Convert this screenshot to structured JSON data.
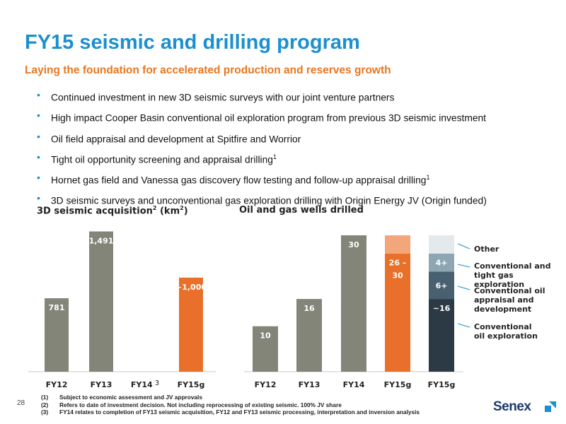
{
  "title": "FY15 seismic and drilling program",
  "subtitle": "Laying the foundation for accelerated production and reserves growth",
  "bullets": [
    {
      "text": "Continued investment in new 3D seismic surveys with our joint venture partners",
      "sup": ""
    },
    {
      "text": "High impact Cooper Basin conventional oil exploration program from previous 3D seismic investment",
      "sup": ""
    },
    {
      "text": "Oil field appraisal and development at Spitfire and Worrior",
      "sup": ""
    },
    {
      "text": "Tight oil opportunity screening and appraisal drilling",
      "sup": "1"
    },
    {
      "text": "Hornet gas field and Vanessa gas discovery flow testing and follow-up appraisal drilling",
      "sup": "1"
    },
    {
      "text": "3D seismic surveys and unconventional gas exploration drilling with Origin Energy JV (Origin funded)",
      "sup": ""
    }
  ],
  "chart_data": [
    {
      "type": "bar",
      "title": "3D seismic acquisition",
      "title_sup": "2",
      "title_unit": " (km",
      "title_unit_sup": "2",
      "title_end": ")",
      "categories": [
        "FY12",
        "FY13",
        "FY14",
        "FY15g"
      ],
      "category_sups": [
        "",
        "",
        "3",
        ""
      ],
      "values": [
        781,
        1491,
        0,
        1000
      ],
      "data_labels": [
        "781",
        "1,491",
        "",
        "~1,000"
      ],
      "colors": [
        "#838579",
        "#838579",
        "#838579",
        "#e8702a"
      ],
      "ylim": [
        0,
        1600
      ]
    },
    {
      "type": "bar",
      "title": "Oil and gas wells drilled",
      "categories": [
        "FY12",
        "FY13",
        "FY14",
        "FY15g",
        "FY15g"
      ],
      "values": [
        10,
        16,
        30,
        30,
        null
      ],
      "data_labels": [
        "10",
        "16",
        "30",
        "26 –\n30",
        ""
      ],
      "colors": [
        "#838579",
        "#838579",
        "#838579",
        "#e8702a",
        ""
      ],
      "range_top_color": "#f2a67a",
      "range": {
        "low": 26,
        "high": 30
      },
      "stacked_bar": {
        "category_index": 4,
        "segments": [
          {
            "name": "Conventional oil exploration",
            "value": 16,
            "label": "~16",
            "color": "#2c3a46"
          },
          {
            "name": "Conventional oil appraisal and development",
            "value": 6,
            "label": "6+",
            "color": "#48606f"
          },
          {
            "name": "Conventional and tight gas exploration",
            "value": 4,
            "label": "4+",
            "color": "#8ea6b4"
          },
          {
            "name": "Other",
            "value": 4,
            "label": "",
            "color": "#e4e9ec"
          }
        ]
      },
      "ylim": [
        0,
        33
      ]
    }
  ],
  "legend": [
    {
      "text": "Other"
    },
    {
      "text": "Conventional and\ntight gas exploration"
    },
    {
      "text": "Conventional oil\nappraisal and\ndevelopment"
    },
    {
      "text": "Conventional\noil exploration"
    }
  ],
  "footnotes": [
    {
      "num": "(1)",
      "text": "Subject to economic assessment and JV approvals"
    },
    {
      "num": "(2)",
      "text": "Refers to date of investment decision.  Not including reprocessing of existing seismic.  100% JV share"
    },
    {
      "num": "(3)",
      "text": "FY14 relates to completion of FY13 seismic acquisition, FY12 and FY13 seismic processing, interpretation and inversion analysis"
    }
  ],
  "page_number": "28",
  "logo_text": "Senex"
}
